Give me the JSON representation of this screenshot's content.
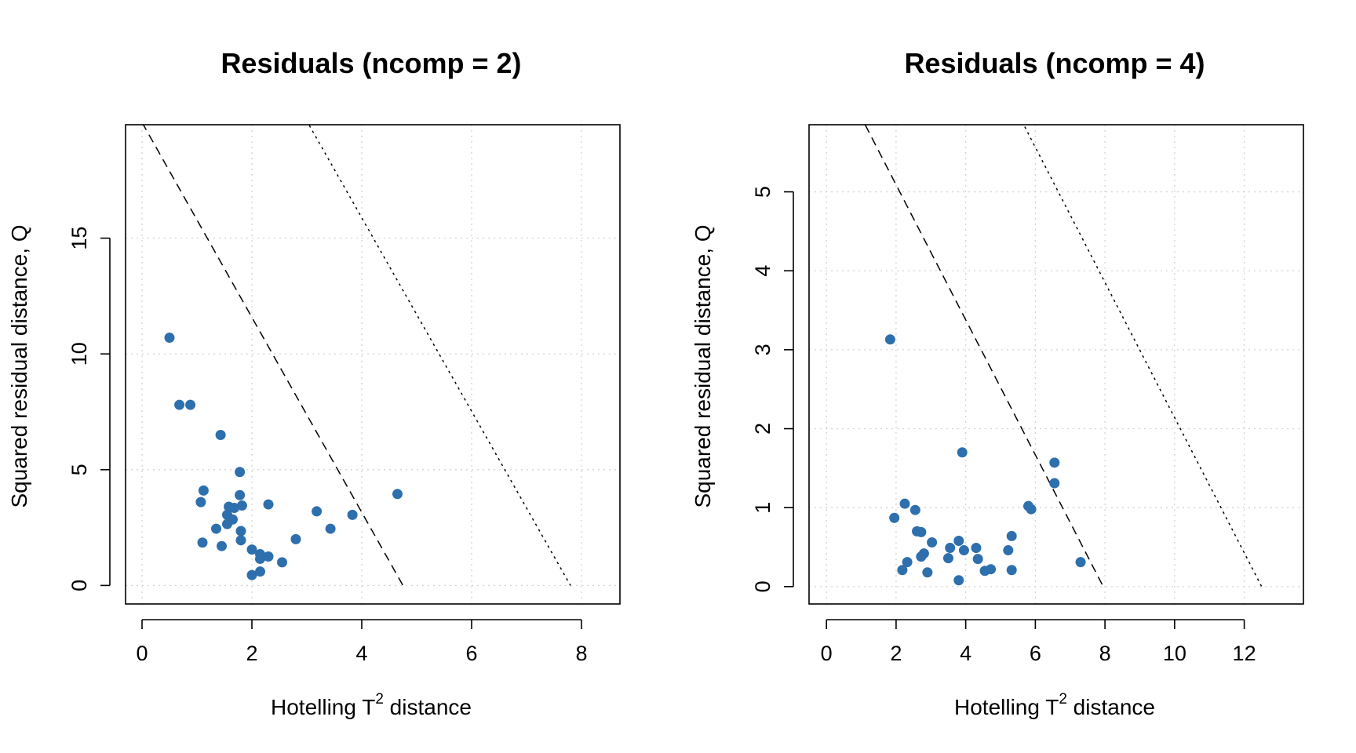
{
  "chart_data": [
    {
      "type": "scatter",
      "title": "Residuals (ncomp = 2)",
      "xlabel": "Hotelling T",
      "xlabel_superscript": "2",
      "xlabel_suffix": " distance",
      "ylabel": "Squared residual distance, Q",
      "xlim": [
        -0.3,
        8.7
      ],
      "ylim": [
        -0.8,
        19.9
      ],
      "xticks": [
        0,
        2,
        4,
        6,
        8
      ],
      "yticks": [
        0,
        5,
        10,
        15
      ],
      "grid": true,
      "point_color": "#2e6fad",
      "limit_lines": [
        {
          "style": "dashed",
          "x0": 4.75,
          "y0": 20.0
        },
        {
          "style": "dotted",
          "x0": 7.8,
          "y0": 32.6
        }
      ],
      "points": [
        {
          "x": 0.5,
          "y": 10.7
        },
        {
          "x": 0.68,
          "y": 7.8
        },
        {
          "x": 0.88,
          "y": 7.8
        },
        {
          "x": 1.43,
          "y": 6.5
        },
        {
          "x": 1.78,
          "y": 4.9
        },
        {
          "x": 1.12,
          "y": 4.1
        },
        {
          "x": 4.65,
          "y": 3.95
        },
        {
          "x": 1.07,
          "y": 3.6
        },
        {
          "x": 1.78,
          "y": 3.9
        },
        {
          "x": 1.58,
          "y": 3.4
        },
        {
          "x": 1.68,
          "y": 3.35
        },
        {
          "x": 1.82,
          "y": 3.45
        },
        {
          "x": 2.3,
          "y": 3.5
        },
        {
          "x": 3.18,
          "y": 3.2
        },
        {
          "x": 1.55,
          "y": 3.05
        },
        {
          "x": 1.65,
          "y": 2.85
        },
        {
          "x": 1.55,
          "y": 2.65
        },
        {
          "x": 3.83,
          "y": 3.05
        },
        {
          "x": 1.35,
          "y": 2.45
        },
        {
          "x": 1.8,
          "y": 2.35
        },
        {
          "x": 3.43,
          "y": 2.45
        },
        {
          "x": 1.1,
          "y": 1.85
        },
        {
          "x": 1.8,
          "y": 1.95
        },
        {
          "x": 2.8,
          "y": 2.0
        },
        {
          "x": 1.45,
          "y": 1.7
        },
        {
          "x": 2.0,
          "y": 1.55
        },
        {
          "x": 2.15,
          "y": 1.35
        },
        {
          "x": 2.3,
          "y": 1.25
        },
        {
          "x": 2.15,
          "y": 1.15
        },
        {
          "x": 2.55,
          "y": 1.0
        },
        {
          "x": 2.15,
          "y": 0.6
        },
        {
          "x": 2.0,
          "y": 0.45
        }
      ]
    },
    {
      "type": "scatter",
      "title": "Residuals (ncomp = 4)",
      "xlabel": "Hotelling T",
      "xlabel_superscript": "2",
      "xlabel_suffix": " distance",
      "ylabel": "Squared residual distance, Q",
      "xlim": [
        -0.5,
        13.7
      ],
      "ylim": [
        -0.22,
        5.85
      ],
      "xticks": [
        0,
        2,
        4,
        6,
        8,
        10,
        12
      ],
      "yticks": [
        0,
        1,
        2,
        3,
        4,
        5
      ],
      "grid": true,
      "point_color": "#2e6fad",
      "limit_lines": [
        {
          "style": "dashed",
          "x0": 7.95,
          "y0": 6.8
        },
        {
          "style": "dotted",
          "x0": 12.5,
          "y0": 10.7
        }
      ],
      "points": [
        {
          "x": 1.83,
          "y": 3.13
        },
        {
          "x": 3.9,
          "y": 1.7
        },
        {
          "x": 6.55,
          "y": 1.57
        },
        {
          "x": 6.55,
          "y": 1.31
        },
        {
          "x": 2.25,
          "y": 1.05
        },
        {
          "x": 2.55,
          "y": 0.97
        },
        {
          "x": 5.8,
          "y": 1.02
        },
        {
          "x": 5.88,
          "y": 0.98
        },
        {
          "x": 1.95,
          "y": 0.87
        },
        {
          "x": 2.6,
          "y": 0.7
        },
        {
          "x": 2.72,
          "y": 0.69
        },
        {
          "x": 5.32,
          "y": 0.64
        },
        {
          "x": 3.8,
          "y": 0.58
        },
        {
          "x": 3.03,
          "y": 0.56
        },
        {
          "x": 3.55,
          "y": 0.49
        },
        {
          "x": 4.3,
          "y": 0.49
        },
        {
          "x": 3.95,
          "y": 0.46
        },
        {
          "x": 5.22,
          "y": 0.46
        },
        {
          "x": 2.8,
          "y": 0.42
        },
        {
          "x": 2.72,
          "y": 0.38
        },
        {
          "x": 3.5,
          "y": 0.36
        },
        {
          "x": 4.35,
          "y": 0.35
        },
        {
          "x": 2.32,
          "y": 0.31
        },
        {
          "x": 7.3,
          "y": 0.31
        },
        {
          "x": 2.18,
          "y": 0.21
        },
        {
          "x": 4.72,
          "y": 0.22
        },
        {
          "x": 4.55,
          "y": 0.2
        },
        {
          "x": 5.32,
          "y": 0.21
        },
        {
          "x": 2.9,
          "y": 0.18
        },
        {
          "x": 3.8,
          "y": 0.08
        }
      ]
    }
  ]
}
